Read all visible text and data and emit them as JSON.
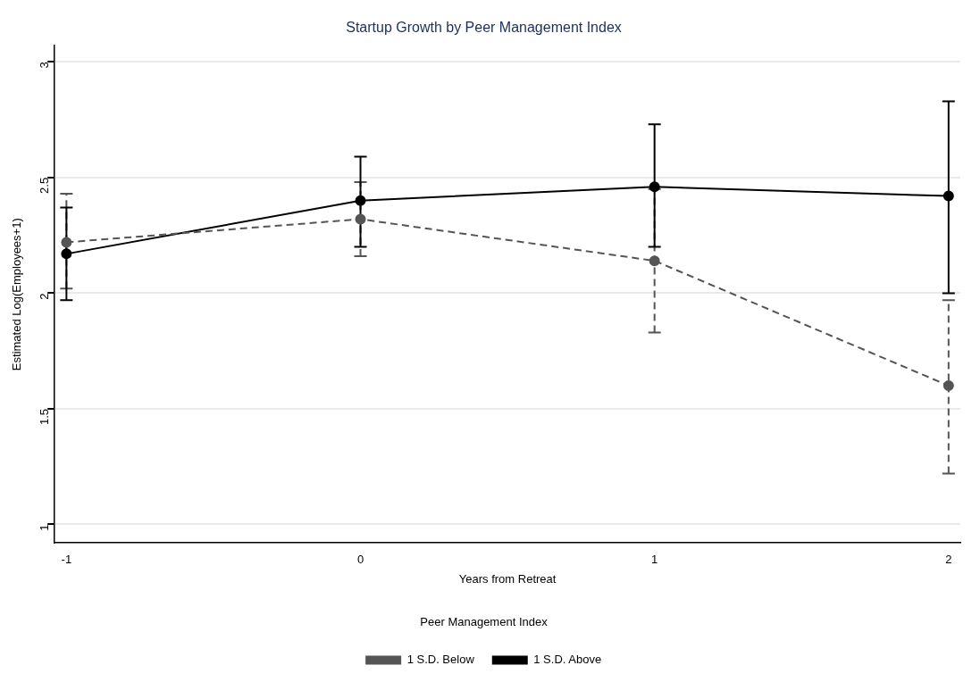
{
  "chart_data": {
    "type": "line",
    "title": "Startup Growth by Peer Management Index",
    "xlabel": "Years from Retreat",
    "ylabel": "Estimated Log(Employees+1)",
    "legend_title": "Peer Management Index",
    "x": [
      -1,
      0,
      1,
      2
    ],
    "xlim": [
      -1.04,
      2.04
    ],
    "xticks": [
      -1,
      0,
      1,
      2
    ],
    "ylim": [
      0.92,
      3.07
    ],
    "yticks": [
      1,
      1.5,
      2,
      2.5,
      3
    ],
    "grid": "y",
    "legend": "bottom",
    "marker": "circle",
    "series": [
      {
        "name": "1 S.D. Below",
        "color": "#555555",
        "line_style": "dashed",
        "values": [
          2.22,
          2.32,
          2.14,
          1.6
        ],
        "errors": [
          [
            2.02,
            2.43
          ],
          [
            2.16,
            2.48
          ],
          [
            1.83,
            2.45
          ],
          [
            1.22,
            1.97
          ]
        ]
      },
      {
        "name": "1 S.D. Above",
        "color": "#000000",
        "line_style": "solid",
        "values": [
          2.17,
          2.4,
          2.46,
          2.42
        ],
        "errors": [
          [
            1.97,
            2.37
          ],
          [
            2.2,
            2.59
          ],
          [
            2.2,
            2.73
          ],
          [
            2.0,
            2.83
          ]
        ]
      }
    ]
  }
}
